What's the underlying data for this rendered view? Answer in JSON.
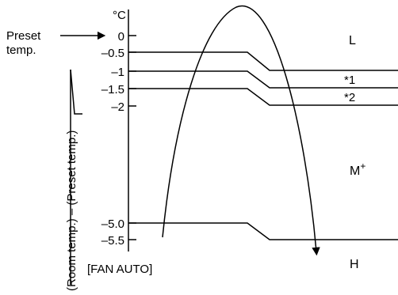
{
  "diagram": {
    "unit_label": "°C",
    "preset_label_line1": "Preset",
    "preset_label_line2": "temp.",
    "axis_label": "(Room temp.) – (Preset temp.)",
    "footer_label": "[FAN AUTO]",
    "ticks": [
      "0",
      "–0.5",
      "–1",
      "–1.5",
      "–2",
      "–5.0",
      "–5.5"
    ],
    "zones": {
      "low": "L",
      "mid_base": "M",
      "mid_sup": "+",
      "high": "H"
    },
    "notes": [
      "*1",
      "*2"
    ]
  }
}
